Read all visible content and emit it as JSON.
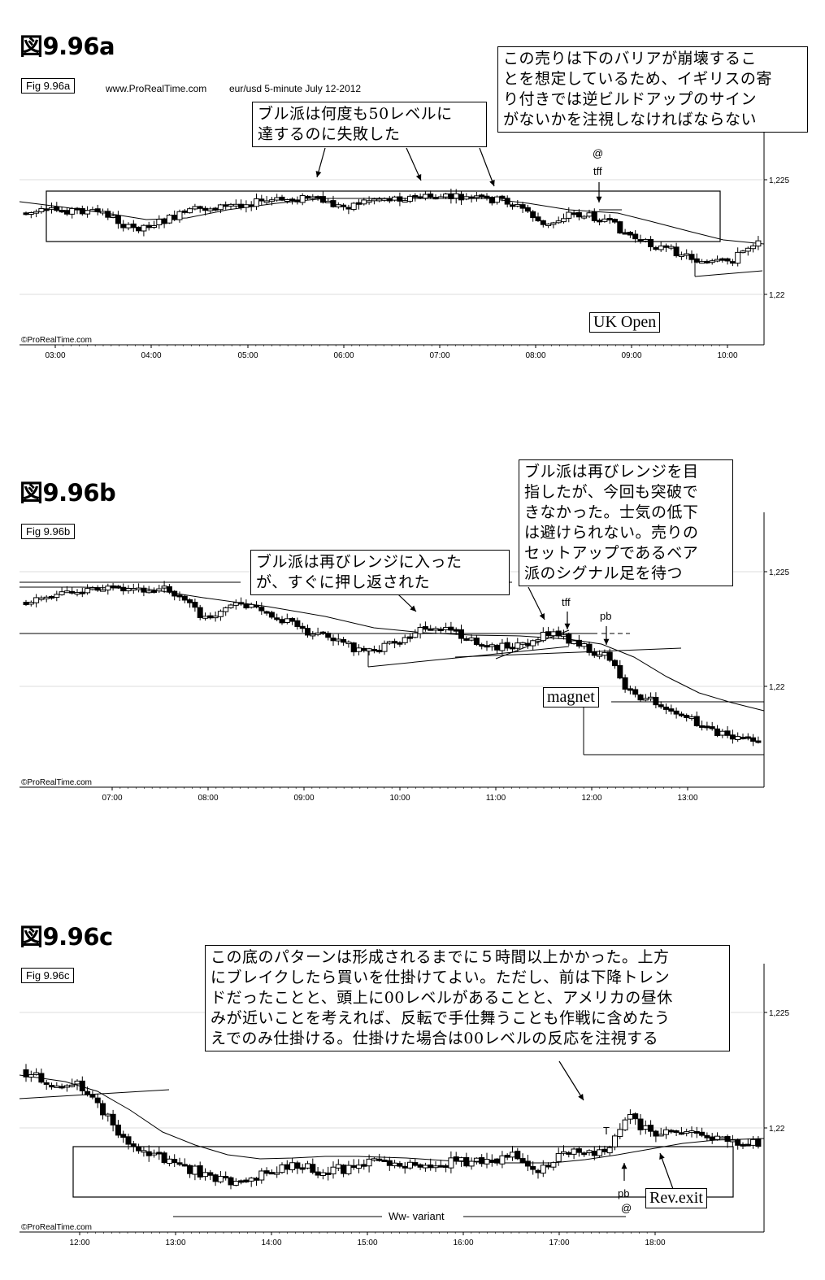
{
  "chart_data": [
    {
      "type": "candlestick",
      "title": "図9.96a",
      "fig_label": "Fig 9.96a",
      "header": {
        "source": "www.ProRealTime.com",
        "instrument": "eur/usd  5-minute  July 12-2012"
      },
      "x_ticks": [
        "03:00",
        "04:00",
        "05:00",
        "06:00",
        "07:00",
        "08:00",
        "09:00",
        "10:00"
      ],
      "y_ticks": [
        "1,225",
        "1,22"
      ],
      "copyright": "©ProRealTime.com",
      "annotations": {
        "bulls_failed": "ブル派は何度も50レベルに\n達するのに失敗した",
        "sell_note": "この売りは下のバリアが崩壊するこ\nとを想定しているため、イギリスの寄\nり付きでは逆ビルドアップのサイン\nがないかを注視しなければならない",
        "uk_open": "UK Open",
        "at": "@",
        "tff": "tff"
      }
    },
    {
      "type": "candlestick",
      "title": "図9.96b",
      "fig_label": "Fig 9.96b",
      "x_ticks": [
        "07:00",
        "08:00",
        "09:00",
        "10:00",
        "11:00",
        "12:00",
        "13:00"
      ],
      "y_ticks": [
        "1,225",
        "1,22"
      ],
      "copyright": "©ProRealTime.com",
      "annotations": {
        "bulls_pushed_back": "ブル派は再びレンジに入った\nが、すぐに押し返された",
        "bulls_failed_again": "ブル派は再びレンジを目\n指したが、今回も突破で\nきなかった。士気の低下\nは避けられない。売りの\nセットアップであるベア\n派のシグナル足を待つ",
        "tff": "tff",
        "pb": "pb",
        "magnet": "magnet"
      }
    },
    {
      "type": "candlestick",
      "title": "図9.96c",
      "fig_label": "Fig 9.96c",
      "x_ticks": [
        "12:00",
        "13:00",
        "14:00",
        "15:00",
        "16:00",
        "17:00",
        "18:00"
      ],
      "y_ticks": [
        "1,225",
        "1,22"
      ],
      "copyright": "©ProRealTime.com",
      "annotations": {
        "bottom_pattern": "この底のパターンは形成されるまでに５時間以上かかった。上方\nにブレイクしたら買いを仕掛けてよい。ただし、前は下降トレン\nドだったことと、頭上に00レベルがあることと、アメリカの昼休\nみが近いことを考えれば、反転で手仕舞うことも作戦に含めたう\nえでのみ仕掛ける。仕掛けた場合は00レベルの反応を注視する",
        "T": "T",
        "pb": "pb",
        "at": "@",
        "rev_exit": "Rev.exit",
        "ww_variant": "Ww- variant"
      }
    }
  ]
}
